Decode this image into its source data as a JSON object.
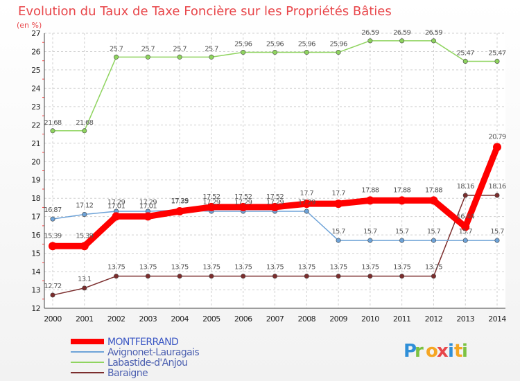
{
  "chart_data": {
    "type": "line",
    "title": "Evolution du Taux de Taxe Foncière sur les Propriétés Bâties",
    "subtitle": "(en %)",
    "xlabel": "",
    "ylabel": "(en %)",
    "x": [
      "2000",
      "2001",
      "2002",
      "2003",
      "2004",
      "2005",
      "2006",
      "2007",
      "2008",
      "2009",
      "2010",
      "2011",
      "2012",
      "2013",
      "2014"
    ],
    "ylim": [
      12,
      27
    ],
    "yticks": [
      "12",
      "13",
      "14",
      "15",
      "16",
      "17",
      "18",
      "19",
      "20",
      "21",
      "22",
      "23",
      "24",
      "25",
      "26",
      "27"
    ],
    "grid": true,
    "legend_position": "bottom-left",
    "series": [
      {
        "name": "Baraigne",
        "color": "#7b2d2d",
        "values": [
          12.72,
          13.1,
          13.75,
          13.75,
          13.75,
          13.75,
          13.75,
          13.75,
          13.75,
          13.75,
          13.75,
          13.75,
          13.75,
          18.16,
          18.16
        ],
        "labels": [
          "12.72",
          "13.1",
          "13.75",
          "13.75",
          "13.75",
          "13.75",
          "13.75",
          "13.75",
          "13.75",
          "13.75",
          "13.75",
          "13.75",
          "13.75",
          "18.16",
          "18.16"
        ]
      },
      {
        "name": "Labastide-d'Anjou",
        "color": "#8fd45f",
        "values": [
          21.68,
          21.68,
          25.7,
          25.7,
          25.7,
          25.7,
          25.96,
          25.96,
          25.96,
          25.96,
          26.59,
          26.59,
          26.59,
          25.47,
          25.47
        ],
        "labels": [
          "21.68",
          "21.68",
          "25.7",
          "25.7",
          "25.7",
          "25.7",
          "25.96",
          "25.96",
          "25.96",
          "25.96",
          "26.59",
          "26.59",
          "26.59",
          "25.47",
          "25.47"
        ]
      },
      {
        "name": "Avignonet-Lauragais",
        "color": "#6ea3d8",
        "values": [
          16.87,
          17.12,
          17.29,
          17.29,
          17.35,
          17.29,
          17.29,
          17.29,
          17.29,
          15.7,
          15.7,
          15.7,
          15.7,
          15.7,
          15.7
        ],
        "labels": [
          "16.87",
          "17.12",
          "17.29",
          "17.29",
          "17.35",
          "17.29",
          "17.29",
          "17.29",
          "17.29",
          "15.7",
          "15.7",
          "15.7",
          "15.7",
          "15.7",
          "15.7"
        ]
      },
      {
        "name": "MONTFERRAND",
        "color": "#ff0000",
        "values": [
          15.39,
          15.39,
          17.01,
          17.01,
          17.29,
          17.52,
          17.52,
          17.52,
          17.7,
          17.7,
          17.88,
          17.88,
          17.88,
          16.44,
          20.79
        ],
        "labels": [
          "15.39",
          "15.39",
          "17.01",
          "17.01",
          "17.29",
          "17.52",
          "17.52",
          "17.52",
          "17.7",
          "17.7",
          "17.88",
          "17.88",
          "17.88",
          "16.44",
          "20.79"
        ]
      }
    ],
    "legend": [
      "MONTFERRAND",
      "Avignonet-Lauragais",
      "Labastide-d'Anjou",
      "Baraigne"
    ]
  },
  "brand": {
    "letters": [
      "P",
      "r",
      "o",
      "x",
      "i",
      "t",
      "i"
    ],
    "colors": [
      "#2f8fd8",
      "#7cc242",
      "#f5a623",
      "#e8464a",
      "#2f8fd8",
      "#f5a623",
      "#7cc242"
    ]
  }
}
